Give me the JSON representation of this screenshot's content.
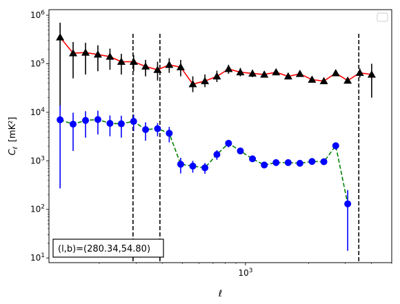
{
  "chart_data": {
    "type": "scatter",
    "xscale": "log",
    "yscale": "log",
    "xlim": [
      115,
      5000
    ],
    "ylim": [
      8,
      1300000
    ],
    "xlabel": "ℓ",
    "ylabel": "C_ℓ [mK²]",
    "xtick_labels": [
      {
        "value": 1000,
        "base": "10",
        "exp": "3"
      }
    ],
    "ytick_labels": [
      {
        "value": 10,
        "base": "10",
        "exp": "1"
      },
      {
        "value": 100,
        "base": "10",
        "exp": "2"
      },
      {
        "value": 1000,
        "base": "10",
        "exp": "3"
      },
      {
        "value": 10000,
        "base": "10",
        "exp": "4"
      },
      {
        "value": 100000,
        "base": "10",
        "exp": "5"
      },
      {
        "value": 1000000,
        "base": "10",
        "exp": "6"
      }
    ],
    "annotation": "(l,b)=(280.34,54.80)",
    "vlines": [
      290,
      390,
      3480
    ],
    "legend": {
      "position": "top-right",
      "entries": []
    },
    "series": [
      {
        "marker": "triangle",
        "color": "#000000",
        "line_color": "#ff0000",
        "line_style": "solid",
        "errorbar_color": "#000000",
        "points": [
          {
            "x": 130,
            "y": 350000,
            "ylo": 13000,
            "yhi": 700000
          },
          {
            "x": 150,
            "y": 165000,
            "ylo": 50000,
            "yhi": 280000
          },
          {
            "x": 172,
            "y": 170000,
            "ylo": 60000,
            "yhi": 270000
          },
          {
            "x": 197,
            "y": 155000,
            "ylo": 70000,
            "yhi": 240000
          },
          {
            "x": 225,
            "y": 140000,
            "ylo": 75000,
            "yhi": 205000
          },
          {
            "x": 255,
            "y": 110000,
            "ylo": 60000,
            "yhi": 160000
          },
          {
            "x": 292,
            "y": 110000,
            "ylo": 70000,
            "yhi": 150000
          },
          {
            "x": 333,
            "y": 88000,
            "ylo": 55000,
            "yhi": 120000
          },
          {
            "x": 380,
            "y": 75000,
            "ylo": 45000,
            "yhi": 110000
          },
          {
            "x": 432,
            "y": 95000,
            "ylo": 65000,
            "yhi": 130000
          },
          {
            "x": 490,
            "y": 85000,
            "ylo": 55000,
            "yhi": 120000
          },
          {
            "x": 560,
            "y": 38000,
            "ylo": 26000,
            "yhi": 55000
          },
          {
            "x": 640,
            "y": 44000,
            "ylo": 33000,
            "yhi": 60000
          },
          {
            "x": 730,
            "y": 55000,
            "ylo": 42000,
            "yhi": 72000
          },
          {
            "x": 830,
            "y": 78000,
            "ylo": 62000,
            "yhi": 95000
          },
          {
            "x": 945,
            "y": 67000,
            "ylo": 55000,
            "yhi": 82000
          },
          {
            "x": 1080,
            "y": 63000,
            "ylo": 53000,
            "yhi": 75000
          },
          {
            "x": 1230,
            "y": 60000,
            "ylo": 52000,
            "yhi": 70000
          },
          {
            "x": 1400,
            "y": 67000,
            "ylo": 59000,
            "yhi": 76000
          },
          {
            "x": 1600,
            "y": 55000,
            "ylo": 49000,
            "yhi": 62000
          },
          {
            "x": 1820,
            "y": 62000,
            "ylo": 56000,
            "yhi": 69000
          },
          {
            "x": 2080,
            "y": 47000,
            "ylo": 42000,
            "yhi": 53000
          },
          {
            "x": 2370,
            "y": 44000,
            "ylo": 40000,
            "yhi": 49000
          },
          {
            "x": 2700,
            "y": 64000,
            "ylo": 58000,
            "yhi": 71000
          },
          {
            "x": 3080,
            "y": 45000,
            "ylo": 40000,
            "yhi": 51000
          },
          {
            "x": 3520,
            "y": 65000,
            "ylo": 52000,
            "yhi": 80000
          },
          {
            "x": 4010,
            "y": 60000,
            "ylo": 20000,
            "yhi": 100000
          }
        ]
      },
      {
        "marker": "circle",
        "color": "#0000ff",
        "line_color": "#008000",
        "line_style": "dashed",
        "errorbar_color": "#0000ff",
        "points": [
          {
            "x": 130,
            "y": 7000,
            "ylo": 270,
            "yhi": 14000
          },
          {
            "x": 150,
            "y": 5700,
            "ylo": 1600,
            "yhi": 9800
          },
          {
            "x": 172,
            "y": 6800,
            "ylo": 3000,
            "yhi": 10500
          },
          {
            "x": 197,
            "y": 7100,
            "ylo": 3500,
            "yhi": 10800
          },
          {
            "x": 225,
            "y": 5900,
            "ylo": 3200,
            "yhi": 8600
          },
          {
            "x": 255,
            "y": 5800,
            "ylo": 3000,
            "yhi": 8500
          },
          {
            "x": 292,
            "y": 6500,
            "ylo": 4100,
            "yhi": 8900
          },
          {
            "x": 333,
            "y": 4400,
            "ylo": 2600,
            "yhi": 6200
          },
          {
            "x": 380,
            "y": 4600,
            "ylo": 3200,
            "yhi": 6000
          },
          {
            "x": 432,
            "y": 3700,
            "ylo": 2400,
            "yhi": 5000
          },
          {
            "x": 490,
            "y": 850,
            "ylo": 550,
            "yhi": 1150
          },
          {
            "x": 560,
            "y": 780,
            "ylo": 570,
            "yhi": 1000
          },
          {
            "x": 640,
            "y": 720,
            "ylo": 540,
            "yhi": 900
          },
          {
            "x": 730,
            "y": 1350,
            "ylo": 1050,
            "yhi": 1650
          },
          {
            "x": 830,
            "y": 2300,
            "ylo": 1900,
            "yhi": 2700
          },
          {
            "x": 945,
            "y": 1600,
            "ylo": 1400,
            "yhi": 1800
          },
          {
            "x": 1080,
            "y": 1100,
            "ylo": 980,
            "yhi": 1220
          },
          {
            "x": 1230,
            "y": 820,
            "ylo": 740,
            "yhi": 900
          },
          {
            "x": 1400,
            "y": 920,
            "ylo": 850,
            "yhi": 990
          },
          {
            "x": 1600,
            "y": 920,
            "ylo": 860,
            "yhi": 980
          },
          {
            "x": 1820,
            "y": 890,
            "ylo": 830,
            "yhi": 950
          },
          {
            "x": 2080,
            "y": 970,
            "ylo": 900,
            "yhi": 1040
          },
          {
            "x": 2370,
            "y": 960,
            "ylo": 890,
            "yhi": 1030
          },
          {
            "x": 2700,
            "y": 2050,
            "ylo": 1700,
            "yhi": 2400
          },
          {
            "x": 3080,
            "y": 130,
            "ylo": 14,
            "yhi": 250
          }
        ]
      }
    ]
  }
}
